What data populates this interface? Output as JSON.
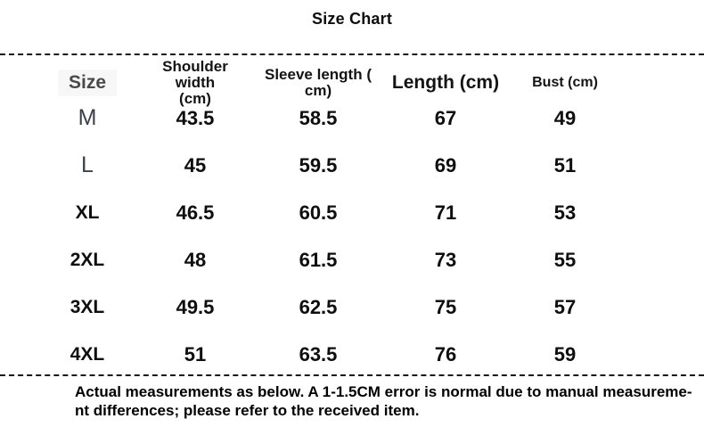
{
  "chart_data": {
    "type": "table",
    "title": "Size Chart",
    "columns": [
      "Size",
      "Shoulder width (cm)",
      "Sleeve length ( cm)",
      "Length (cm)",
      "Bust (cm)"
    ],
    "rows": [
      [
        "M",
        "43.5",
        "58.5",
        "67",
        "49"
      ],
      [
        "L",
        "45",
        "59.5",
        "69",
        "51"
      ],
      [
        "XL",
        "46.5",
        "60.5",
        "71",
        "53"
      ],
      [
        "2XL",
        "48",
        "61.5",
        "73",
        "55"
      ],
      [
        "3XL",
        "49.5",
        "62.5",
        "75",
        "57"
      ],
      [
        "4XL",
        "51",
        "63.5",
        "76",
        "59"
      ]
    ]
  },
  "headers": {
    "size": "Size",
    "shoulder_lines": [
      "Shoulder width",
      "(cm)"
    ],
    "sleeve_lines": [
      "Sleeve length (",
      "cm)"
    ],
    "length": "Length (cm)",
    "bust": "Bust (cm)"
  },
  "footer": {
    "lines": [
      "Actual measurements as below. A 1-1.5CM error is normal due to manual measureme-",
      "nt differences; please refer to the received item."
    ]
  },
  "colors": {
    "background": "#ffffff",
    "text": "#0e0e0e",
    "size_label_gray": "#3b414b",
    "size_header_text": "#4a4a4a",
    "size_header_bg": "#f7f7f7",
    "dashed_rule": "#1a1a1a"
  }
}
